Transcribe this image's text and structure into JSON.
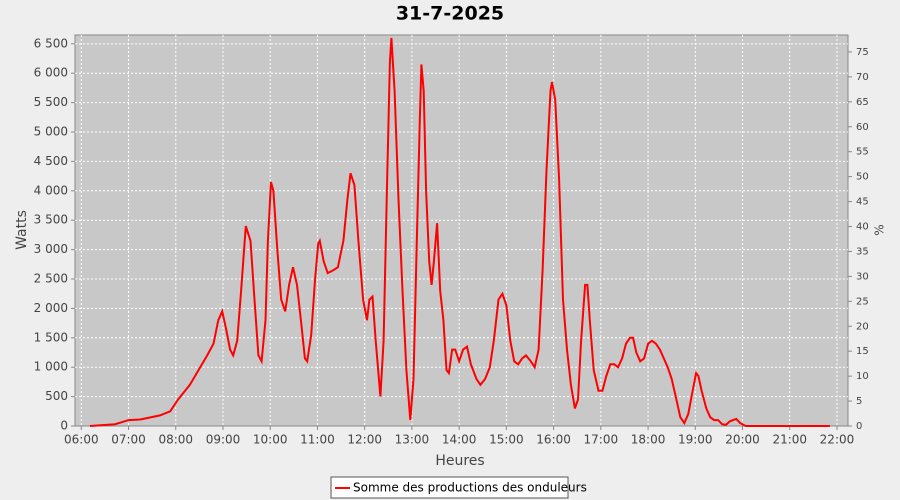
{
  "chart_data": {
    "type": "line",
    "title": "31-7-2025",
    "xlabel": "Heures",
    "ylabel": "Watts",
    "y2label": "%",
    "grid": true,
    "legend": "bottom",
    "xlim": [
      "05:52",
      "22:14"
    ],
    "xticks": [
      "06:00",
      "07:00",
      "08:00",
      "09:00",
      "10:00",
      "11:00",
      "12:00",
      "13:00",
      "14:00",
      "15:00",
      "16:00",
      "17:00",
      "18:00",
      "19:00",
      "20:00",
      "21:00",
      "22:00"
    ],
    "ylim": [
      0,
      6650
    ],
    "yticks": [
      0,
      500,
      {
        "value": 1000,
        "label": "1 000"
      },
      {
        "value": 1500,
        "label": "1 500"
      },
      {
        "value": 2000,
        "label": "2 000"
      },
      {
        "value": 2500,
        "label": "2 500"
      },
      {
        "value": 3000,
        "label": "3 000"
      },
      {
        "value": 3500,
        "label": "3 500"
      },
      {
        "value": 4000,
        "label": "4 000"
      },
      {
        "value": 4500,
        "label": "4 500"
      },
      {
        "value": 5000,
        "label": "5 000"
      },
      {
        "value": 5500,
        "label": "5 500"
      },
      {
        "value": 6000,
        "label": "6 000"
      },
      {
        "value": 6500,
        "label": "6 500"
      }
    ],
    "y2lim": [
      0,
      78.4
    ],
    "y2ticks": [
      0,
      5,
      10,
      15,
      20,
      25,
      30,
      35,
      40,
      45,
      50,
      55,
      60,
      65,
      70,
      75
    ],
    "x": [
      "06:11",
      "06:43",
      "07:00",
      "07:15",
      "07:40",
      "07:53",
      "08:03",
      "08:18",
      "08:31",
      "08:40",
      "08:48",
      "08:54",
      "08:59",
      "09:04",
      "09:09",
      "09:13",
      "09:18",
      "09:23",
      "09:29",
      "09:35",
      "09:40",
      "09:45",
      "09:49",
      "09:54",
      "09:57",
      "10:01",
      "10:04",
      "10:09",
      "10:14",
      "10:19",
      "10:24",
      "10:29",
      "10:34",
      "10:39",
      "10:44",
      "10:47",
      "10:52",
      "10:57",
      "11:01",
      "11:03",
      "11:08",
      "11:13",
      "11:20",
      "11:26",
      "11:33",
      "11:38",
      "11:42",
      "11:47",
      "11:52",
      "11:58",
      "12:03",
      "12:06",
      "12:10",
      "12:14",
      "12:20",
      "12:24",
      "12:28",
      "12:32",
      "12:34",
      "12:38",
      "12:43",
      "12:48",
      "12:53",
      "12:58",
      "13:02",
      "13:06",
      "13:10",
      "13:12",
      "13:15",
      "13:18",
      "13:22",
      "13:25",
      "13:28",
      "13:32",
      "13:36",
      "13:40",
      "13:44",
      "13:47",
      "13:51",
      "13:55",
      "14:00",
      "14:05",
      "14:10",
      "14:15",
      "14:22",
      "14:27",
      "14:33",
      "14:39",
      "14:44",
      "14:50",
      "14:55",
      "15:00",
      "15:05",
      "15:10",
      "15:15",
      "15:20",
      "15:25",
      "15:31",
      "15:36",
      "15:41",
      "15:46",
      "15:51",
      "15:56",
      "15:58",
      "16:02",
      "16:07",
      "16:12",
      "16:17",
      "16:22",
      "16:27",
      "16:31",
      "16:35",
      "16:40",
      "16:43",
      "16:46",
      "16:51",
      "16:57",
      "17:02",
      "17:07",
      "17:12",
      "17:17",
      "17:22",
      "17:27",
      "17:32",
      "17:37",
      "17:41",
      "17:45",
      "17:50",
      "17:55",
      "18:00",
      "18:05",
      "18:10",
      "18:15",
      "18:20",
      "18:25",
      "18:30",
      "18:36",
      "18:41",
      "18:46",
      "18:51",
      "18:56",
      "19:01",
      "19:04",
      "19:08",
      "19:14",
      "19:19",
      "19:24",
      "19:29",
      "19:34",
      "19:39",
      "19:44",
      "19:52",
      "19:57",
      "20:04",
      "21:13",
      "21:51"
    ],
    "series": [
      {
        "name": "Somme des productions des onduleurs",
        "color": "#ff0000",
        "values": [
          0,
          30,
          100,
          110,
          180,
          250,
          450,
          700,
          1000,
          1200,
          1400,
          1800,
          1950,
          1650,
          1300,
          1200,
          1450,
          2300,
          3400,
          3150,
          2150,
          1200,
          1100,
          1800,
          3150,
          4150,
          4000,
          3000,
          2150,
          1950,
          2400,
          2700,
          2400,
          1800,
          1150,
          1100,
          1550,
          2500,
          3100,
          3150,
          2800,
          2600,
          2650,
          2700,
          3150,
          3850,
          4300,
          4100,
          3150,
          2150,
          1800,
          2150,
          2200,
          1450,
          500,
          1450,
          3850,
          6200,
          6600,
          5700,
          3850,
          2300,
          950,
          100,
          800,
          3000,
          5200,
          6150,
          5700,
          4000,
          2800,
          2400,
          2800,
          3450,
          2300,
          1800,
          950,
          900,
          1300,
          1300,
          1100,
          1300,
          1350,
          1050,
          800,
          700,
          800,
          1000,
          1450,
          2150,
          2250,
          2050,
          1450,
          1100,
          1050,
          1150,
          1200,
          1100,
          1000,
          1300,
          2650,
          4350,
          5700,
          5850,
          5550,
          4200,
          2150,
          1300,
          700,
          300,
          450,
          1450,
          2400,
          2400,
          1800,
          950,
          600,
          600,
          850,
          1050,
          1050,
          1000,
          1150,
          1400,
          1500,
          1500,
          1250,
          1100,
          1150,
          1400,
          1450,
          1400,
          1300,
          1150,
          1000,
          800,
          450,
          150,
          50,
          200,
          550,
          900,
          850,
          600,
          300,
          150,
          100,
          100,
          30,
          20,
          80,
          120,
          50,
          0,
          0,
          0
        ]
      }
    ]
  }
}
